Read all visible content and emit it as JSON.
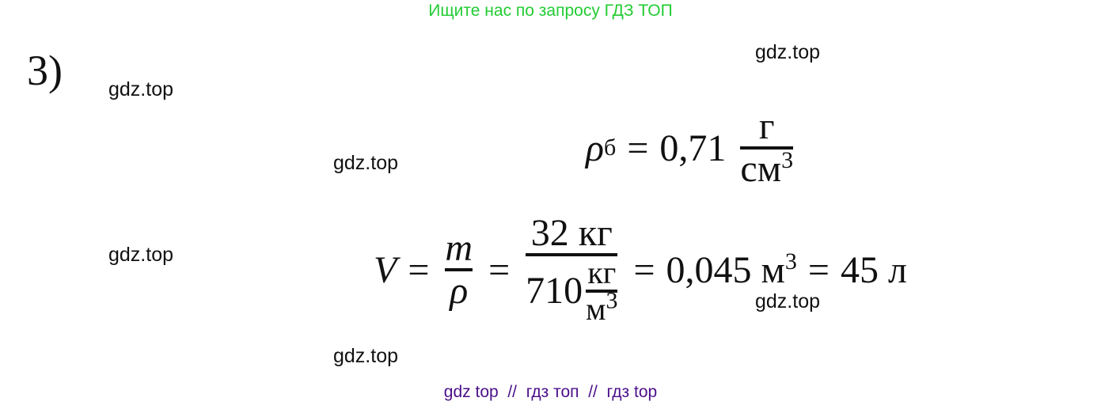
{
  "header": "Ищите нас по запросу ГДЗ ТОП",
  "problem_number": "3)",
  "watermarks": [
    "gdz.top",
    "gdz.top",
    "gdz.top",
    "gdz.top",
    "gdz.top",
    "gdz.top"
  ],
  "eq1": {
    "symbol": "ρ",
    "subscript": "б",
    "eq": "=",
    "value": "0,71",
    "num": "г",
    "den": "см",
    "den_exp": "3"
  },
  "eq2": {
    "lhs": "V",
    "eq": "=",
    "f1_num": "m",
    "f1_den": "ρ",
    "f2_num": "32 кг",
    "f2_den_val": "710",
    "f2_den_num": "кг",
    "f2_den_den": "м",
    "f2_den_exp": "3",
    "r1": "0,045 м",
    "r1_exp": "3",
    "r2": "45 л"
  },
  "footer": "gdz top  //  гдз топ  //  гдз top",
  "colors": {
    "header": "#22cc33",
    "footer": "#4b0f8a"
  }
}
